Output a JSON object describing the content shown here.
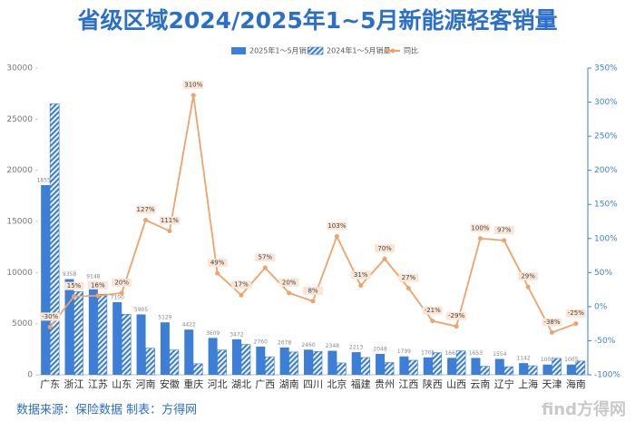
{
  "chart_data": {
    "type": "bar",
    "title": "省级区域2024/2025年1~5月新能源轻客销量",
    "categories": [
      "广东",
      "浙江",
      "江苏",
      "山东",
      "河南",
      "安徽",
      "重庆",
      "河北",
      "湖北",
      "广西",
      "湖南",
      "四川",
      "北京",
      "福建",
      "贵州",
      "江西",
      "陕西",
      "山西",
      "云南",
      "辽宁",
      "上海",
      "天津",
      "海南"
    ],
    "series": [
      {
        "name": "2025年1～5月销量",
        "color": "#3d7fd6",
        "values": [
          18551,
          9358,
          9148,
          7100,
          5905,
          5129,
          4422,
          3609,
          3472,
          2760,
          2678,
          2460,
          2348,
          2213,
          2048,
          1799,
          1705,
          1661,
          1653,
          1554,
          1142,
          1001,
          1005
        ]
      },
      {
        "name": "2024年1～5月销量",
        "color": "#3d7fd6",
        "pattern": "hatch",
        "values": [
          26500,
          8130,
          7890,
          5920,
          2600,
          2430,
          1080,
          2420,
          2970,
          1760,
          2230,
          2280,
          1160,
          1690,
          1200,
          1420,
          2160,
          2340,
          830,
          790,
          885,
          1610,
          1340
        ]
      },
      {
        "name": "同比",
        "color": "#eda36a",
        "type": "line",
        "axis": "y2",
        "values": [
          -30,
          15,
          16,
          20,
          127,
          111,
          310,
          49,
          17,
          57,
          20,
          8,
          103,
          31,
          70,
          27,
          -21,
          -29,
          100,
          97,
          29,
          -38,
          -25
        ],
        "value_labels": [
          "-30%",
          "15%",
          "16%",
          "20%",
          "127%",
          "111%",
          "310%",
          "49%",
          "17%",
          "57%",
          "20%",
          "8%",
          "103%",
          "31%",
          "70%",
          "27%",
          "-21%",
          "-29%",
          "100%",
          "97%",
          "29%",
          "-38%",
          "-25%"
        ]
      }
    ],
    "ylim": [
      0,
      30000
    ],
    "yticks": [
      0,
      5000,
      10000,
      15000,
      20000,
      25000,
      30000
    ],
    "y2lim": [
      -100,
      350
    ],
    "y2ticks": [
      {
        "value": -100,
        "label": "-100%"
      },
      {
        "value": -50,
        "label": "-50%"
      },
      {
        "value": 0,
        "label": "0%"
      },
      {
        "value": 50,
        "label": "50%"
      },
      {
        "value": 100,
        "label": "100%"
      },
      {
        "value": 150,
        "label": "150%"
      },
      {
        "value": 200,
        "label": "200%"
      },
      {
        "value": 250,
        "label": "250%"
      },
      {
        "value": 300,
        "label": "300%"
      },
      {
        "value": 350,
        "label": "350%"
      }
    ],
    "grid": false
  },
  "source": "数据来源：保险数据 制表：方得网",
  "watermark": "find方得网"
}
